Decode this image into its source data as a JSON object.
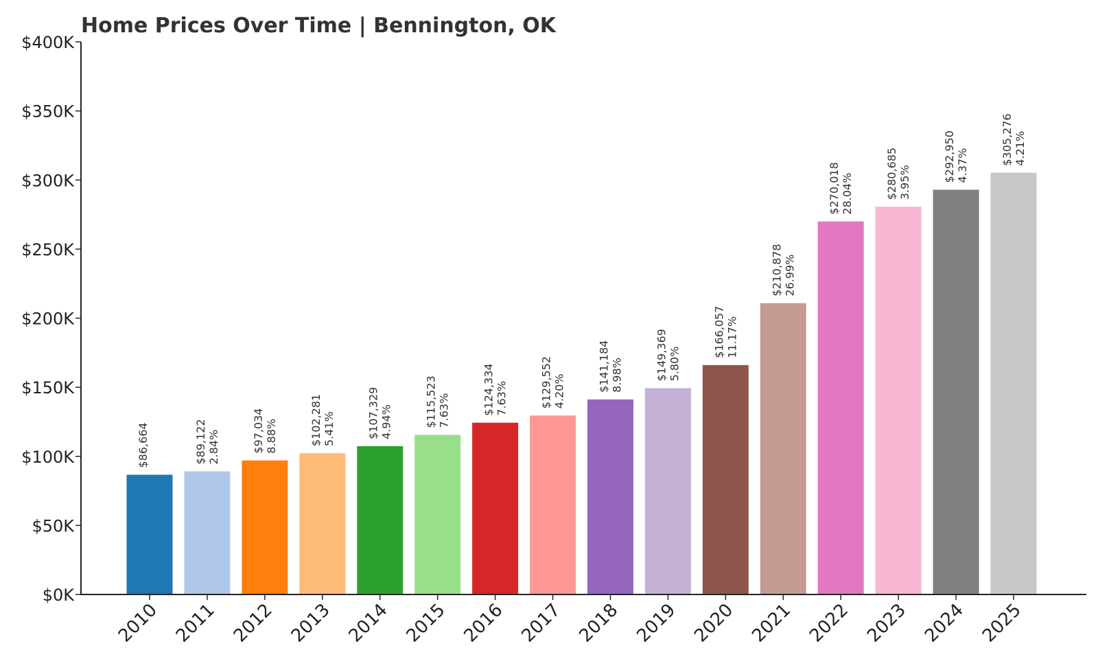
{
  "chart_data": {
    "type": "bar",
    "title": "Home Prices Over Time | Bennington, OK",
    "xlabel": "",
    "ylabel": "",
    "ylim": [
      0,
      400000
    ],
    "yticks": [
      0,
      50000,
      100000,
      150000,
      200000,
      250000,
      300000,
      350000,
      400000
    ],
    "ytick_labels": [
      "$0K",
      "$50K",
      "$100K",
      "$150K",
      "$200K",
      "$250K",
      "$300K",
      "$350K",
      "$400K"
    ],
    "grid": false,
    "legend": "none",
    "categories": [
      "2010",
      "2011",
      "2012",
      "2013",
      "2014",
      "2015",
      "2016",
      "2017",
      "2018",
      "2019",
      "2020",
      "2021",
      "2022",
      "2023",
      "2024",
      "2025"
    ],
    "values": [
      86664,
      89122,
      97034,
      102281,
      107329,
      115523,
      124334,
      129552,
      141184,
      149369,
      166057,
      210878,
      270018,
      280685,
      292950,
      305276
    ],
    "value_labels": [
      "$86,664",
      "$89,122",
      "$97,034",
      "$102,281",
      "$107,329",
      "$115,523",
      "$124,334",
      "$129,552",
      "$141,184",
      "$149,369",
      "$166,057",
      "$210,878",
      "$270,018",
      "$280,685",
      "$292,950",
      "$305,276"
    ],
    "change_labels": [
      "",
      "2.84%",
      "8.88%",
      "5.41%",
      "4.94%",
      "7.63%",
      "7.63%",
      "4.20%",
      "8.98%",
      "5.80%",
      "11.17%",
      "26.99%",
      "28.04%",
      "3.95%",
      "4.37%",
      "4.21%"
    ],
    "colors": [
      "#1f77b4",
      "#aec7e8",
      "#ff7f0e",
      "#ffbb78",
      "#2ca02c",
      "#98df8a",
      "#d62728",
      "#ff9896",
      "#9467bd",
      "#c5b0d5",
      "#8c564b",
      "#c49c94",
      "#e377c2",
      "#f7b6d2",
      "#7f7f7f",
      "#c7c7c7"
    ]
  }
}
